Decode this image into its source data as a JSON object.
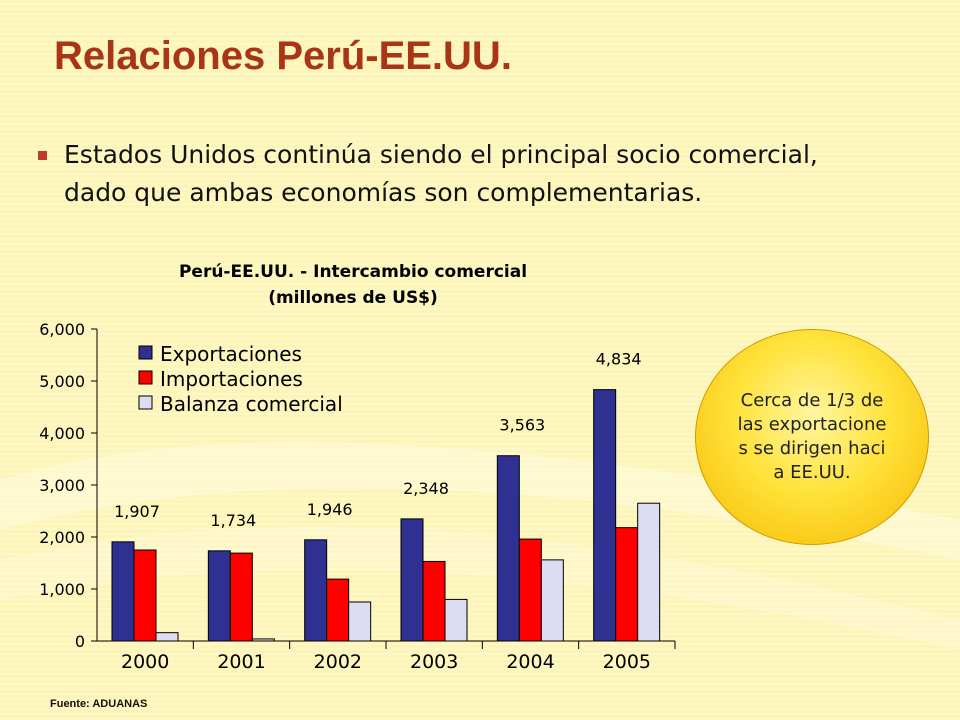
{
  "page": {
    "title": "Relaciones Perú-EE.UU.",
    "bullet_line1": "Estados Unidos continúa siendo el principal socio comercial,",
    "bullet_line2": "dado que ambas economías son complementarias.",
    "callout": "Cerca de 1/3 de las exportaciones se dirigen hacia EE.UU.",
    "source": "Fuente:  ADUANAS"
  },
  "chart_data": {
    "type": "bar",
    "title": "Perú-EE.UU. - Intercambio comercial",
    "subtitle": "(millones de US$)",
    "xlabel": "",
    "ylabel": "",
    "ylim": [
      0,
      6000
    ],
    "yticks": [
      "0",
      "1,000",
      "2,000",
      "3,000",
      "4,000",
      "5,000",
      "6,000"
    ],
    "categories": [
      "2000",
      "2001",
      "2002",
      "2003",
      "2004",
      "2005"
    ],
    "legend_position": "top-left",
    "grid": false,
    "series": [
      {
        "name": "Exportaciones",
        "color": "#2e3192",
        "values": [
          1907,
          1734,
          1946,
          2348,
          3563,
          4834
        ]
      },
      {
        "name": "Importaciones",
        "color": "#ff0000",
        "values": [
          1750,
          1690,
          1190,
          1530,
          1960,
          2180
        ]
      },
      {
        "name": "Balanza comercial",
        "color": "#dcdcf2",
        "values": [
          160,
          40,
          750,
          800,
          1560,
          2650
        ]
      }
    ],
    "data_labels": [
      "1,907",
      "1,734",
      "1,946",
      "2,348",
      "3,563",
      "4,834"
    ]
  }
}
